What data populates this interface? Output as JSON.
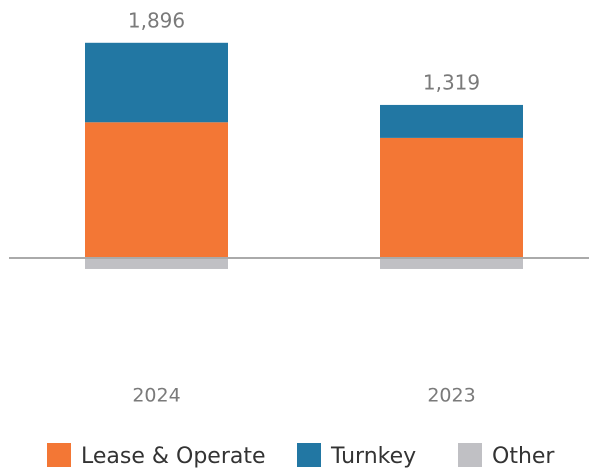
{
  "chart_data": {
    "type": "stacked_bar",
    "categories": [
      "2024",
      "2023"
    ],
    "series": [
      {
        "name": "Lease & Operate",
        "color": "#f37735",
        "values": [
          1260,
          1115
        ]
      },
      {
        "name": "Turnkey",
        "color": "#2277a3",
        "values": [
          738,
          306
        ]
      },
      {
        "name": "Other",
        "color": "#c0c0c4",
        "values": [
          -102,
          -102
        ]
      }
    ],
    "totals": [
      1896,
      1319
    ],
    "total_labels": [
      "1,896",
      "1,319"
    ],
    "ylim": [
      -1000,
      2100
    ]
  }
}
